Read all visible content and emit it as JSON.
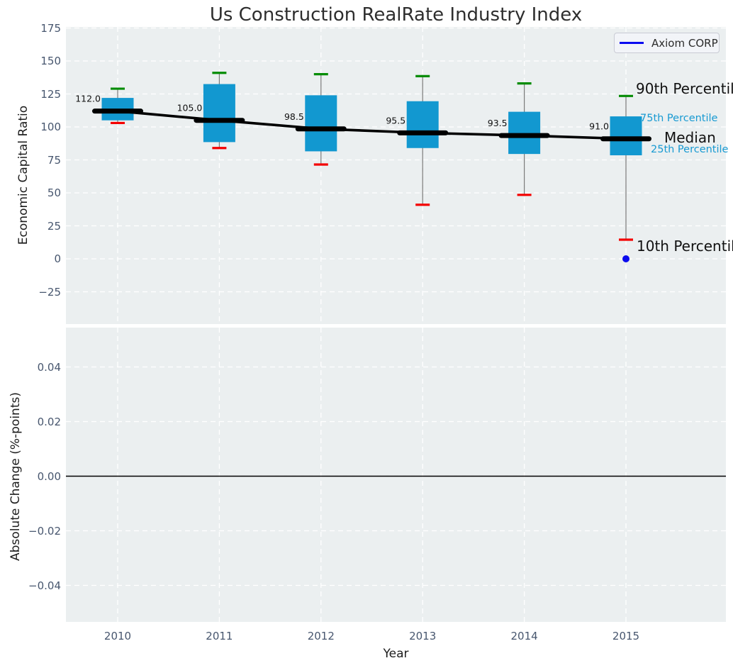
{
  "figure": {
    "title": "Us Construction RealRate Industry Index"
  },
  "legend": {
    "label": "Axiom CORP"
  },
  "labels": {
    "p90": "90th Percentile",
    "p75": "75th Percentile",
    "median": "Median",
    "p25": "25th Percentile",
    "p10": "10th Percentile"
  },
  "colors": {
    "box_fill": "#1298d0",
    "p90_cap": "#058c05",
    "p10_cap": "#f40000",
    "whisker": "#7a7a7a",
    "median_line": "#000000",
    "trend_line": "#000000",
    "company": "#0b0bee",
    "plot_bg": "#ebeff0",
    "grid": "#ffffff",
    "zero_line": "#000000",
    "percentile_label_blue": "#189ad2",
    "tick_label": "#47566e"
  },
  "chart_data": [
    {
      "type": "boxplot",
      "title": "Us Construction RealRate Industry Index",
      "ylabel": "Economic Capital Ratio",
      "ylim": [
        -49.5,
        175.8
      ],
      "yticks": [
        175,
        150,
        125,
        100,
        75,
        50,
        25,
        0,
        -25
      ],
      "ytick_labels": [
        "175",
        "150",
        "125",
        "100",
        "75",
        "50",
        "25",
        "0",
        "−25"
      ],
      "years": [
        2010,
        2011,
        2012,
        2013,
        2014,
        2015
      ],
      "series": [
        {
          "name": "10th Percentile",
          "values": [
            103,
            84,
            71.5,
            41,
            48.5,
            14.5
          ]
        },
        {
          "name": "25th Percentile",
          "values": [
            105,
            88.5,
            81.5,
            84,
            79.5,
            78.5
          ]
        },
        {
          "name": "Median",
          "values": [
            112.0,
            105.0,
            98.5,
            95.5,
            93.5,
            91.0
          ]
        },
        {
          "name": "75th Percentile",
          "values": [
            122,
            132.5,
            124,
            119.5,
            111.5,
            108
          ]
        },
        {
          "name": "90th Percentile",
          "values": [
            129,
            141,
            140,
            138.5,
            133,
            123.5
          ]
        }
      ],
      "median_labels": [
        "112.0",
        "105.0",
        "98.5",
        "95.5",
        "93.5",
        "91.0"
      ],
      "company_point": {
        "name": "Axiom CORP",
        "year": 2015,
        "value": 0
      },
      "legend_position": "upper right",
      "grid": true
    },
    {
      "type": "line",
      "ylabel": "Absolute Change (%-points)",
      "xlabel": "Year",
      "ylim": [
        -0.0545,
        0.0545
      ],
      "yticks": [
        0.04,
        0.02,
        0.0,
        -0.02,
        -0.04
      ],
      "ytick_labels": [
        "0.04",
        "0.02",
        "0.00",
        "−0.02",
        "−0.04"
      ],
      "xticks": [
        2010,
        2011,
        2012,
        2013,
        2014,
        2015
      ],
      "xtick_labels": [
        "2010",
        "2011",
        "2012",
        "2013",
        "2014",
        "2015"
      ],
      "zero_line": 0.0,
      "series": [],
      "grid": true
    }
  ]
}
